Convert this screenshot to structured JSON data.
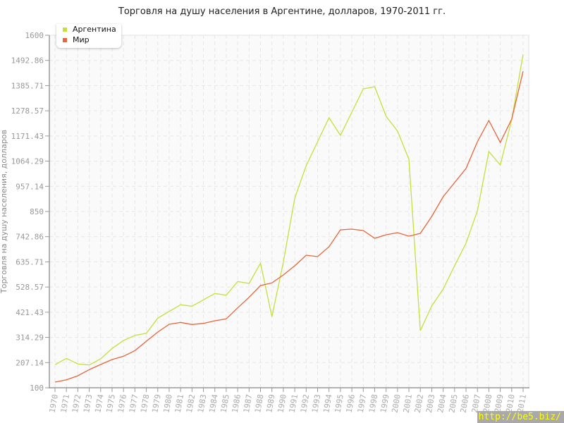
{
  "chart_data": {
    "type": "line",
    "title": "Торговля на душу населения в Аргентине, долларов, 1970-2011 гг.",
    "xlabel": "",
    "ylabel": "Торговля на душу населения, долларов",
    "ylim": [
      100,
      1600
    ],
    "yticks": [
      "100",
      "207.14",
      "314.29",
      "421.43",
      "528.57",
      "635.71",
      "742.86",
      "850",
      "957.14",
      "1064.29",
      "1171.43",
      "1278.57",
      "1385.71",
      "1492.86",
      "1600"
    ],
    "grid": true,
    "legend": "top-left",
    "x": [
      1970,
      1971,
      1972,
      1973,
      1974,
      1975,
      1976,
      1977,
      1978,
      1979,
      1980,
      1981,
      1982,
      1983,
      1984,
      1985,
      1986,
      1987,
      1988,
      1989,
      1990,
      1991,
      1992,
      1993,
      1994,
      1995,
      1996,
      1997,
      1998,
      1999,
      2000,
      2001,
      2002,
      2003,
      2004,
      2005,
      2006,
      2007,
      2008,
      2009,
      2010,
      2011
    ],
    "series": [
      {
        "name": "Аргентина",
        "color": "#c5e03a",
        "values": [
          198,
          225,
          201,
          197,
          223,
          267,
          301,
          323,
          332,
          396,
          425,
          453,
          447,
          474,
          501,
          494,
          552,
          544,
          630,
          402,
          635,
          907,
          1045,
          1147,
          1249,
          1174,
          1273,
          1372,
          1381,
          1255,
          1192,
          1072,
          343,
          448,
          520,
          619,
          715,
          853,
          1105,
          1048,
          1240,
          1519
        ]
      },
      {
        "name": "Мир",
        "color": "#e8643a",
        "values": [
          124,
          134,
          151,
          177,
          199,
          220,
          234,
          258,
          298,
          337,
          370,
          378,
          369,
          374,
          385,
          393,
          440,
          485,
          535,
          546,
          580,
          619,
          664,
          658,
          700,
          772,
          775,
          769,
          736,
          751,
          760,
          745,
          757,
          829,
          913,
          973,
          1033,
          1147,
          1237,
          1144,
          1243,
          1447
        ]
      }
    ]
  },
  "watermark": "http://be5.biz/"
}
